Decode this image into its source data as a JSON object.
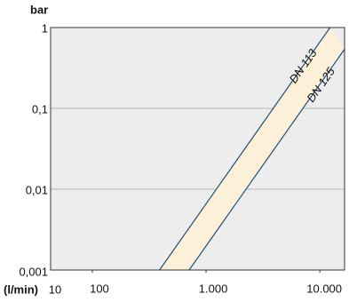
{
  "chart_data": {
    "type": "line",
    "y_label": "bar",
    "x_label": "(l/min)",
    "x_start_label": "10",
    "log_x": true,
    "log_y": true,
    "grid": true,
    "band_color": "#fdf0d8",
    "xlim": [
      43,
      16500
    ],
    "ylim": [
      0.001,
      1
    ],
    "xticks": [
      100,
      {
        "value": 1000,
        "label": "1.000"
      },
      {
        "value": 10000,
        "label": "10.000"
      }
    ],
    "yticks": [
      {
        "value": 0.001,
        "label": "0,001"
      },
      {
        "value": 0.01,
        "label": "0,01"
      },
      {
        "value": 0.1,
        "label": "0,1"
      },
      1
    ],
    "series": [
      {
        "name": "DN 113",
        "color": "#1f4e79",
        "x": [
          390,
          12300
        ],
        "values": [
          0.001,
          1
        ]
      },
      {
        "name": "DN 125",
        "color": "#1f4e79",
        "x": [
          710,
          16500
        ],
        "values": [
          0.001,
          0.54
        ]
      }
    ]
  }
}
